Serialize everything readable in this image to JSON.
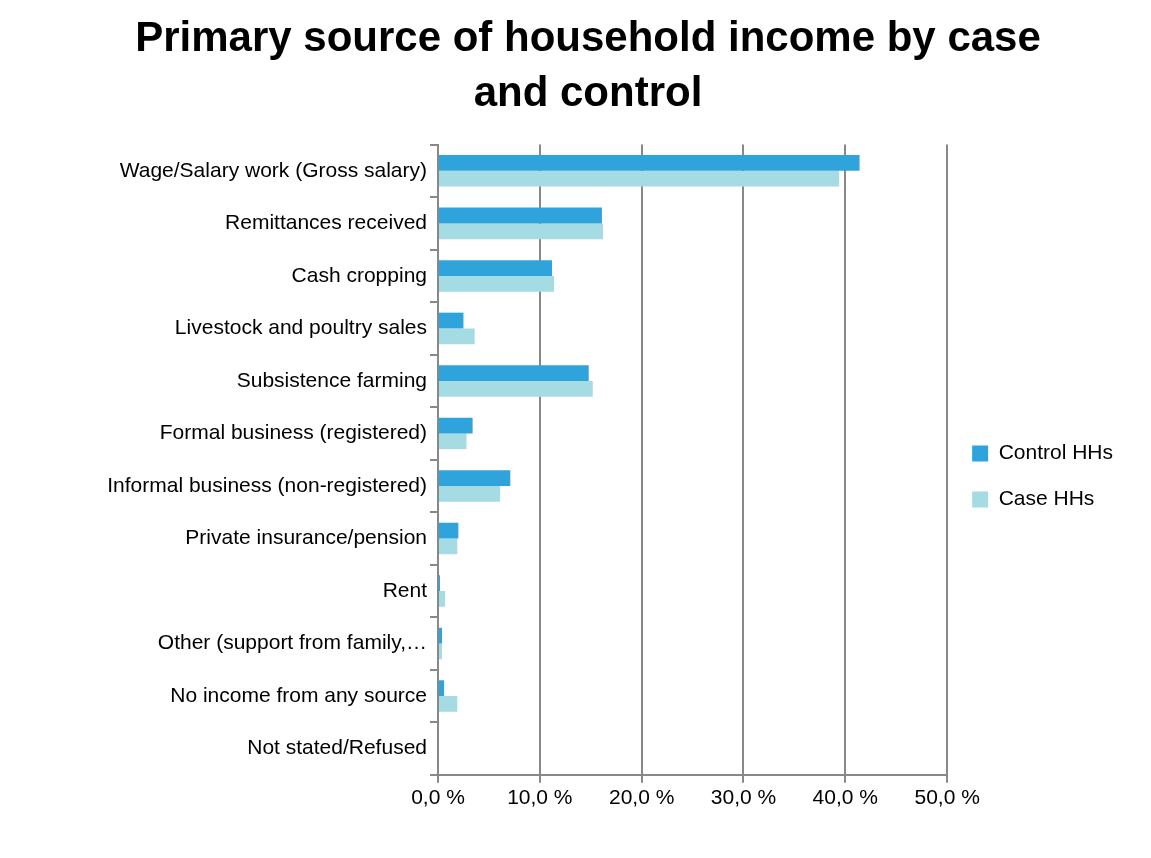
{
  "chart_data": {
    "type": "bar",
    "title": "Primary source of household income by case and control",
    "orientation": "horizontal",
    "categories": [
      "Wage/Salary work (Gross salary)",
      "Remittances received",
      "Cash cropping",
      "Livestock and poultry sales",
      "Subsistence farming",
      "Formal business (registered)",
      "Informal business (non-registered)",
      "Private insurance/pension",
      "Rent",
      "Other (support from family,…",
      "No income from any source",
      "Not stated/Refused"
    ],
    "series": [
      {
        "name": "Control HHs",
        "color": "#2fa3dc",
        "values": [
          41.4,
          16.1,
          11.2,
          2.5,
          14.8,
          3.4,
          7.1,
          2.0,
          0.2,
          0.4,
          0.6,
          0
        ]
      },
      {
        "name": "Case HHs",
        "color": "#a5dbe3",
        "values": [
          39.4,
          16.2,
          11.4,
          3.6,
          15.2,
          2.8,
          6.1,
          1.9,
          0.7,
          0.4,
          1.9,
          0
        ]
      }
    ],
    "xlim": [
      0,
      50
    ],
    "xticks": [
      {
        "value": 0,
        "label": "0,0 %"
      },
      {
        "value": 10,
        "label": "10,0 %"
      },
      {
        "value": 20,
        "label": "20,0 %"
      },
      {
        "value": 30,
        "label": "30,0 %"
      },
      {
        "value": 40,
        "label": "40,0 %"
      },
      {
        "value": 50,
        "label": "50,0 %"
      }
    ],
    "grid": "x",
    "legend": "right"
  }
}
